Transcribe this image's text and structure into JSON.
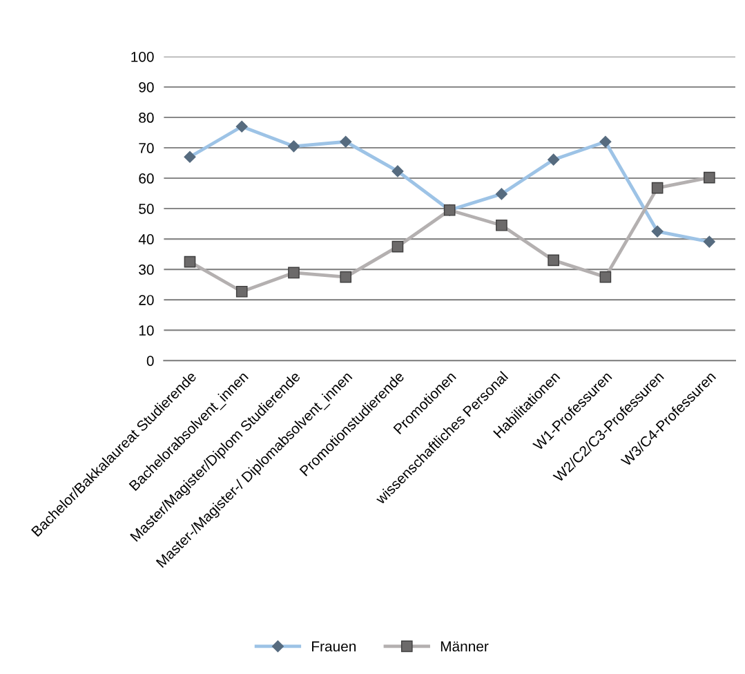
{
  "chart_data": {
    "type": "line",
    "categories": [
      "Bachelor/Bakkalaureat Studierende",
      "Bachelorabsolvent_innen",
      "Master/Magister/Diplom Studierende",
      "Master-/Magister-/ Diplomabsolvent_innen",
      "Promotionstudierende",
      "Promotionen",
      "wissenschaftliches Personal",
      "Habilitationen",
      "W1-Professuren",
      "W2/C2/C3-Professuren",
      "W3/C4-Professuren"
    ],
    "series": [
      {
        "name": "Frauen",
        "color": "#9dc3e6",
        "marker": "diamond",
        "values": [
          67,
          77,
          70.5,
          72,
          62.3,
          49.5,
          54.8,
          66.1,
          72,
          42.5,
          39.1
        ]
      },
      {
        "name": "Männer",
        "color": "#b4b0b0",
        "marker": "square",
        "values": [
          32.5,
          22.7,
          28.9,
          27.5,
          37.5,
          49.5,
          44.5,
          33,
          27.5,
          56.8,
          60.2
        ]
      }
    ],
    "ylim": [
      0,
      100
    ],
    "yticks": [
      0,
      10,
      20,
      30,
      40,
      50,
      60,
      70,
      80,
      90,
      100
    ],
    "grid": "y",
    "legend": "bottom",
    "line_style": "solid"
  }
}
